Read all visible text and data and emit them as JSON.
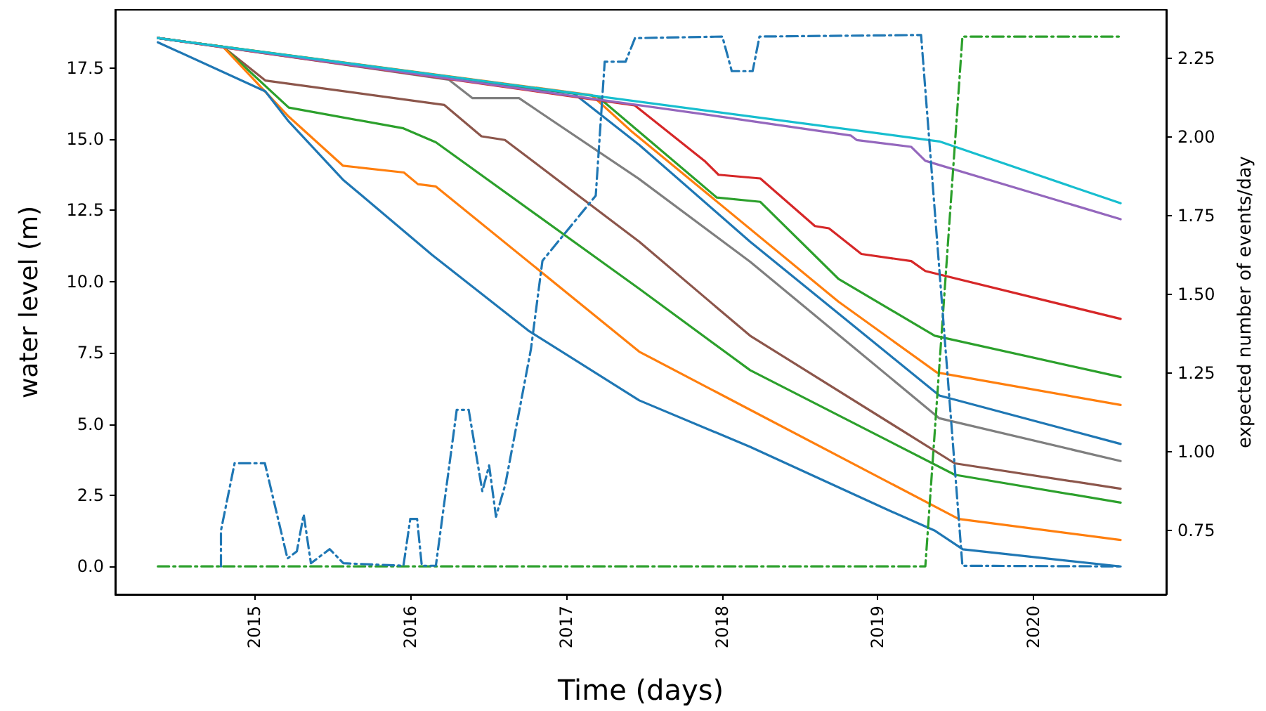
{
  "chart_data": {
    "type": "line",
    "xlabel": "Time (days)",
    "ylabel": "water level (m)",
    "y2label": "expected number of events/day",
    "xlim": [
      "2014-02-08",
      "2020-11-08"
    ],
    "xticks": [
      "2015",
      "2016",
      "2017",
      "2018",
      "2019",
      "2020"
    ],
    "ylim": [
      -0.98,
      19.54
    ],
    "yticks": [
      {
        "value": 0,
        "label": "0.0"
      },
      {
        "value": 2.5,
        "label": "2.5"
      },
      {
        "value": 5,
        "label": "5.0"
      },
      {
        "value": 7.5,
        "label": "7.5"
      },
      {
        "value": 10,
        "label": "10.0"
      },
      {
        "value": 12.5,
        "label": "12.5"
      },
      {
        "value": 15,
        "label": "15.0"
      },
      {
        "value": 17.5,
        "label": "17.5"
      }
    ],
    "y2lim": [
      0.546,
      2.405
    ],
    "y2ticks": [
      0.75,
      {
        "value": 1,
        "label": "1.00"
      },
      1.25,
      {
        "value": 1.5,
        "label": "1.50"
      },
      1.75,
      {
        "value": 2,
        "label": "2.00"
      },
      2.25
    ],
    "grid": false,
    "marker": "none",
    "series": [
      {
        "color": "#8c564b",
        "x": [
          "2014-05-19",
          "2014-10-19",
          "2015-01-26",
          "2016-03-21",
          "2016-06-16",
          "2016-08-10",
          "2017-06-21",
          "2018-03-08",
          "2019-07-01",
          "2020-07-24"
        ],
        "values": [
          18.55,
          18.24,
          17.06,
          16.2,
          15.1,
          14.97,
          11.4,
          8.1,
          3.62,
          2.73
        ]
      },
      {
        "color": "#2ca02c",
        "x": [
          "2014-05-19",
          "2014-10-19",
          "2015-03-22",
          "2015-12-16",
          "2016-03-01",
          "2017-06-21",
          "2018-03-08",
          "2019-07-01",
          "2020-07-24"
        ],
        "values": [
          18.55,
          18.24,
          16.11,
          15.38,
          14.89,
          9.75,
          6.89,
          3.22,
          2.24
        ]
      },
      {
        "color": "#ff7f0e",
        "x": [
          "2014-05-19",
          "2014-10-19",
          "2015-03-22",
          "2015-07-27",
          "2015-12-17",
          "2016-01-19",
          "2016-03-01",
          "2017-06-21",
          "2018-03-08",
          "2019-07-10",
          "2020-07-24"
        ],
        "values": [
          18.55,
          18.24,
          15.79,
          14.07,
          13.83,
          13.42,
          13.34,
          7.54,
          5.5,
          1.67,
          0.93
        ]
      },
      {
        "color": "#7f7f7f",
        "x": [
          "2014-05-19",
          "2016-03-31",
          "2016-05-26",
          "2016-09-12",
          "2017-06-21",
          "2018-03-08",
          "2019-05-26",
          "2020-07-24"
        ],
        "values": [
          18.55,
          17.09,
          16.44,
          16.44,
          13.6,
          10.7,
          5.2,
          3.7
        ]
      },
      {
        "color": "#1f77b4",
        "x": [
          "2014-05-19",
          "2016-10-01",
          "2017-01-19",
          "2017-06-21",
          "2018-03-08",
          "2019-05-26",
          "2020-07-24"
        ],
        "values": [
          18.55,
          16.8,
          16.6,
          14.8,
          11.4,
          6.0,
          4.3
        ]
      },
      {
        "color": "#ff7f0e",
        "x": [
          "2014-05-19",
          "2017-03-01",
          "2017-06-01",
          "2018-10-01",
          "2019-05-20",
          "2020-07-24"
        ],
        "values": [
          18.55,
          16.55,
          15.3,
          9.3,
          6.81,
          5.67
        ]
      },
      {
        "color": "#2ca02c",
        "x": [
          "2014-05-19",
          "2017-03-15",
          "2017-12-20",
          "2018-04-01",
          "2018-10-01",
          "2019-05-15",
          "2020-07-24"
        ],
        "values": [
          18.55,
          16.5,
          12.95,
          12.8,
          10.1,
          8.1,
          6.65
        ]
      },
      {
        "color": "#d62728",
        "x": [
          "2014-05-19",
          "2017-06-10",
          "2017-11-21",
          "2017-12-24",
          "2018-04-01",
          "2018-08-07",
          "2018-09-09",
          "2018-11-24",
          "2019-03-21",
          "2019-04-23",
          "2020-07-24"
        ],
        "values": [
          18.55,
          16.19,
          14.24,
          13.75,
          13.62,
          11.95,
          11.87,
          10.97,
          10.72,
          10.37,
          8.69
        ]
      },
      {
        "color": "#9467bd",
        "x": [
          "2014-05-19",
          "2017-12-24",
          "2018-10-30",
          "2018-11-13",
          "2019-03-21",
          "2019-04-23",
          "2020-07-24"
        ],
        "values": [
          18.55,
          15.8,
          15.13,
          14.97,
          14.73,
          14.24,
          12.19
        ]
      },
      {
        "color": "#17becf",
        "x": [
          "2014-05-19",
          "2019-05-26",
          "2020-07-24"
        ],
        "values": [
          18.55,
          14.92,
          12.75
        ]
      },
      {
        "color": "#1f77b4",
        "x": [
          "2014-05-19",
          "2015-01-26",
          "2015-03-22",
          "2015-07-27",
          "2016-02-21",
          "2016-10-04",
          "2017-06-21",
          "2018-03-08",
          "2019-01-26",
          "2019-05-16",
          "2019-07-20",
          "2020-07-24"
        ],
        "values": [
          18.4,
          16.68,
          15.62,
          13.58,
          10.94,
          8.28,
          5.83,
          4.2,
          1.98,
          1.25,
          0.6,
          0.0
        ]
      },
      {
        "color": "#2ca02c",
        "axis": "y2",
        "line_style": "dashed",
        "x": [
          "2014-05-19",
          "2019-04-23",
          "2019-07-19",
          "2020-07-24"
        ],
        "values": [
          0.635,
          0.635,
          2.32,
          2.32
        ]
      },
      {
        "color": "#1f77b4",
        "axis": "y2",
        "line_style": "dashed",
        "x": [
          "2014-10-14",
          "2014-10-14",
          "2014-11-15",
          "2015-01-25",
          "2015-03-19",
          "2015-04-10",
          "2015-04-26",
          "2015-05-13",
          "2015-06-26",
          "2015-07-28",
          "2015-12-16",
          "2016-01-01",
          "2016-01-17",
          "2016-01-28",
          "2016-03-01",
          "2016-04-19",
          "2016-05-17",
          "2016-06-18",
          "2016-07-04",
          "2016-07-20",
          "2016-08-11",
          "2016-10-10",
          "2016-11-06",
          "2017-03-11",
          "2017-04-01",
          "2017-05-20",
          "2017-06-11",
          "2018-01-02",
          "2018-01-24",
          "2018-03-14",
          "2018-03-30",
          "2019-04-13",
          "2019-07-19",
          "2020-07-23"
        ],
        "values": [
          0.635,
          0.749,
          0.963,
          0.963,
          0.66,
          0.683,
          0.8,
          0.645,
          0.69,
          0.645,
          0.637,
          0.786,
          0.786,
          0.637,
          0.637,
          1.133,
          1.133,
          0.874,
          0.956,
          0.793,
          0.896,
          1.326,
          1.607,
          1.814,
          2.24,
          2.24,
          2.315,
          2.32,
          2.21,
          2.21,
          2.32,
          2.325,
          0.637,
          0.635
        ]
      }
    ]
  }
}
